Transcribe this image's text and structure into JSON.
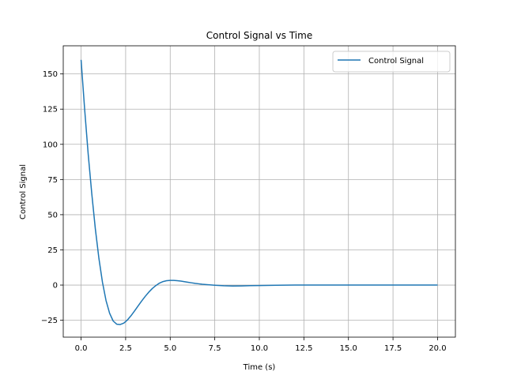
{
  "chart_data": {
    "type": "line",
    "title": "Control Signal vs Time",
    "xlabel": "Time (s)",
    "ylabel": "Control Signal",
    "xlim": [
      -1,
      21
    ],
    "ylim": [
      -37,
      170
    ],
    "xticks": [
      0,
      2.5,
      5,
      7.5,
      10,
      12.5,
      15,
      17.5,
      20
    ],
    "xtick_labels": [
      "0.0",
      "2.5",
      "5.0",
      "7.5",
      "10.0",
      "12.5",
      "15.0",
      "17.5",
      "20.0"
    ],
    "yticks": [
      -25,
      0,
      25,
      50,
      75,
      100,
      125,
      150
    ],
    "ytick_labels": [
      "−25",
      "0",
      "25",
      "50",
      "75",
      "100",
      "125",
      "150"
    ],
    "grid": true,
    "legend_position": "upper right",
    "series": [
      {
        "name": "Control Signal",
        "color": "#1f77b4",
        "x": [
          0,
          0.2,
          0.4,
          0.6,
          0.8,
          1.0,
          1.2,
          1.4,
          1.6,
          1.8,
          2.0,
          2.2,
          2.4,
          2.6,
          2.8,
          3.0,
          3.2,
          3.4,
          3.6,
          3.8,
          4.0,
          4.2,
          4.4,
          4.6,
          4.8,
          5.0,
          5.2,
          5.4,
          5.6,
          5.8,
          6.0,
          6.2,
          6.4,
          6.6,
          6.8,
          7.0,
          7.5,
          8.0,
          8.5,
          9.0,
          9.5,
          10.0,
          11.0,
          12.0,
          13.0,
          14.0,
          15.0,
          16.0,
          17.0,
          18.0,
          19.0,
          20.0
        ],
        "y": [
          160,
          125,
          93,
          65,
          40,
          19,
          2,
          -11,
          -20,
          -25.5,
          -27.8,
          -28,
          -27,
          -24.8,
          -21.8,
          -18.4,
          -14.8,
          -11.3,
          -8,
          -5,
          -2.4,
          -0.3,
          1.4,
          2.5,
          3.1,
          3.3,
          3.3,
          3.1,
          2.8,
          2.4,
          2,
          1.6,
          1.2,
          0.9,
          0.6,
          0.4,
          -0.1,
          -0.5,
          -0.7,
          -0.6,
          -0.4,
          -0.3,
          -0.1,
          0,
          0,
          0,
          0,
          0,
          0,
          0,
          0,
          0
        ]
      }
    ]
  }
}
